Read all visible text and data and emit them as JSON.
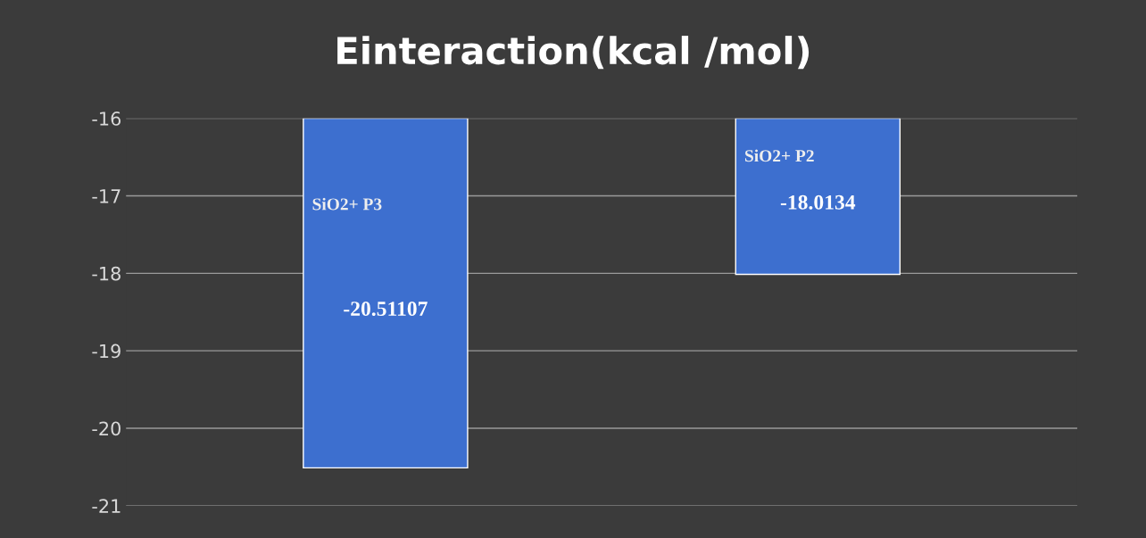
{
  "chart_data": {
    "type": "bar",
    "title": "Einteraction(kcal /mol)",
    "categories": [
      "SiO2+ P3",
      "SiO2+ P2"
    ],
    "values": [
      -20.51107,
      -18.0134
    ],
    "color": "#3d6fcf",
    "ylim": [
      -21,
      -16
    ],
    "yticks": [
      -16,
      -17,
      -18,
      -19,
      -20,
      -21
    ],
    "grid": "y",
    "data_labels": true,
    "tick_labels": "y"
  }
}
